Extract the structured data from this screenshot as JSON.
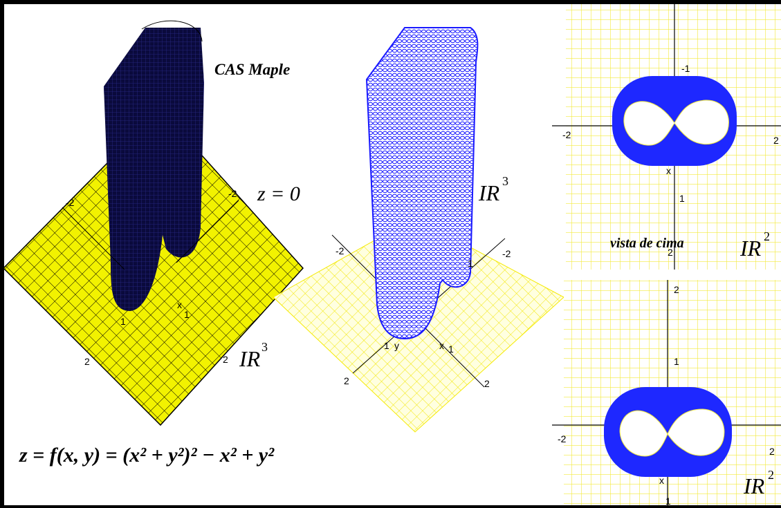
{
  "labels": {
    "cas": "CAS Maple",
    "z_eq": "z = 0",
    "r3_a": "IR",
    "r3_a_exp": "3",
    "r3_b": "IR",
    "r3_b_exp": "3",
    "r2_a": "IR",
    "r2_a_exp": "2",
    "r2_b": "IR",
    "r2_b_exp": "2",
    "vista": "vista de cima",
    "formula": "z = f(x, y) = (x² + y²)² − x² + y²"
  },
  "ticks_left": [
    "-2",
    "-2",
    "1",
    "x",
    "1",
    "2",
    "2"
  ],
  "ticks_mid": [
    "-2",
    "-2",
    "1",
    "1",
    "y",
    "x",
    "1",
    "2",
    "2"
  ],
  "ticks_topright": [
    "-1",
    "-2",
    "2",
    "x",
    "1",
    "2"
  ],
  "ticks_botright": [
    "2",
    "1",
    "-2",
    "2",
    "x",
    "1"
  ],
  "colors": {
    "yellow_plane": "#f2f200",
    "yellow_grid": "#fefe60",
    "dark_surface": "#0a0a3c",
    "blue_mesh": "#1a1aff",
    "blue_fill": "#1e28ff"
  }
}
